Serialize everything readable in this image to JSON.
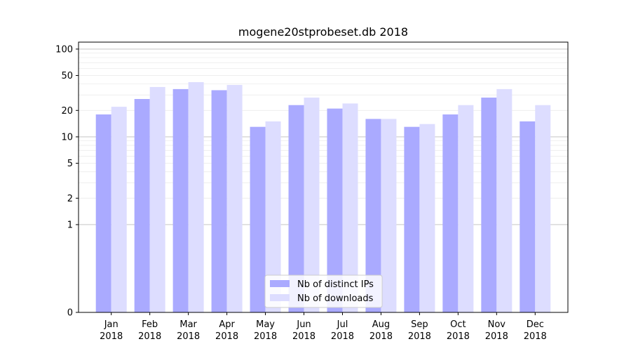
{
  "chart_data": {
    "type": "bar",
    "title": "mogene20stprobeset.db 2018",
    "xlabel": "",
    "ylabel": "",
    "yscale": "symlog",
    "ylim": [
      0,
      120
    ],
    "yticks": [
      0,
      1,
      2,
      5,
      10,
      20,
      50,
      100
    ],
    "grid": "horizontal",
    "legend_position": "lower center",
    "categories": [
      [
        "Jan",
        "2018"
      ],
      [
        "Feb",
        "2018"
      ],
      [
        "Mar",
        "2018"
      ],
      [
        "Apr",
        "2018"
      ],
      [
        "May",
        "2018"
      ],
      [
        "Jun",
        "2018"
      ],
      [
        "Jul",
        "2018"
      ],
      [
        "Aug",
        "2018"
      ],
      [
        "Sep",
        "2018"
      ],
      [
        "Oct",
        "2018"
      ],
      [
        "Nov",
        "2018"
      ],
      [
        "Dec",
        "2018"
      ]
    ],
    "series": [
      {
        "name": "Nb of distinct IPs",
        "color": "#aaaaff",
        "values": [
          18,
          27,
          35,
          34,
          13,
          23,
          21,
          16,
          13,
          18,
          28,
          15
        ]
      },
      {
        "name": "Nb of downloads",
        "color": "#ddddff",
        "values": [
          22,
          37,
          42,
          39,
          15,
          28,
          24,
          16,
          14,
          23,
          35,
          23
        ]
      }
    ]
  }
}
